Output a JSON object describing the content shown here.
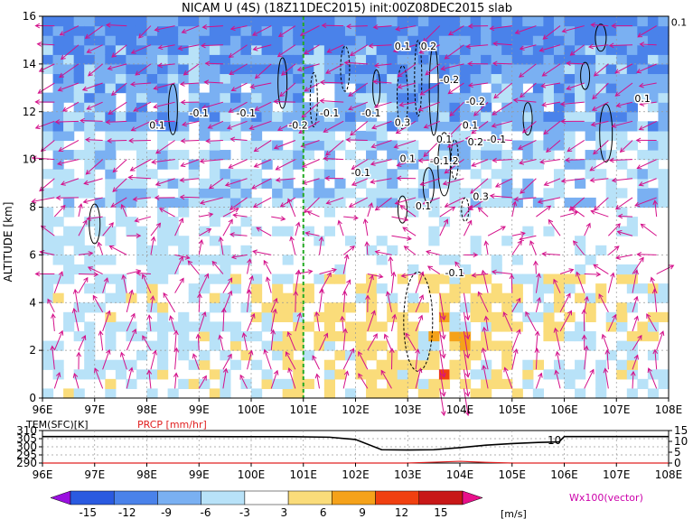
{
  "title": "NICAM U (4S) (18Z11DEC2015) init:00Z08DEC2015 slab",
  "main_panel": {
    "ylabel": "ALTITUDE [km]",
    "yticks": [
      "0",
      "2",
      "4",
      "6",
      "8",
      "10",
      "12",
      "14",
      "16"
    ],
    "xticks": [
      "96E",
      "97E",
      "98E",
      "99E",
      "100E",
      "101E",
      "102E",
      "103E",
      "104E",
      "105E",
      "106E",
      "107E",
      "108E"
    ],
    "contour_labels": [
      "0.1",
      "-0.1",
      "-0.1",
      "-0.2",
      "-0.1",
      "-0.1",
      "0.1",
      "0.2",
      "-0.2",
      "-0.2",
      "0.3",
      "0.1",
      "-0.1.2",
      "0.2",
      "0.1",
      "-0.1",
      "-0.1",
      "0.1",
      "0.3",
      "-0.1",
      "0.1",
      "0.1",
      "0.1"
    ]
  },
  "sub_panel": {
    "left_label": "TEM(SFC)[K]",
    "right_label": "PRCP [mm/hr]",
    "left_ticks": [
      "310",
      "305",
      "300",
      "295",
      "290"
    ],
    "right_ticks": [
      "15",
      "10",
      "5",
      "0"
    ],
    "xticks": [
      "96E",
      "97E",
      "98E",
      "99E",
      "100E",
      "101E",
      "102E",
      "103E",
      "104E",
      "105E",
      "106E",
      "107E",
      "108E"
    ],
    "annotation": "10"
  },
  "colorbar": {
    "ticks": [
      "-15",
      "-12",
      "-9",
      "-6",
      "-3",
      "3",
      "6",
      "9",
      "12",
      "15"
    ],
    "unit": "[m/s]",
    "vector_label": "Wx100(vector)",
    "colors": [
      "#9a10e0",
      "#2a5ae0",
      "#4a82ea",
      "#7ab0f2",
      "#b8e2f8",
      "#ffffff",
      "#fadc7a",
      "#f5a21a",
      "#f04010",
      "#c81818",
      "#e8108a"
    ]
  },
  "chart_data": {
    "type": "heatmap",
    "title": "NICAM U (4S) (18Z11DEC2015) init:00Z08DEC2015 slab",
    "xlabel": "",
    "ylabel": "ALTITUDE [km]",
    "xlim": [
      96,
      108
    ],
    "ylim": [
      0,
      16
    ],
    "x_tick_labels": [
      "96E",
      "97E",
      "98E",
      "99E",
      "100E",
      "101E",
      "102E",
      "103E",
      "104E",
      "105E",
      "106E",
      "107E",
      "108E"
    ],
    "y_tick_labels": [
      "0",
      "2",
      "4",
      "6",
      "8",
      "10",
      "12",
      "14",
      "16"
    ],
    "grid": true,
    "colorbar_levels": [
      -15,
      -12,
      -9,
      -6,
      -3,
      3,
      6,
      9,
      12,
      15
    ],
    "colorbar_unit": "[m/s]",
    "reference_line_x": 101,
    "regions": [
      {
        "category": "< -12",
        "lon": [
          96,
          108
        ],
        "alt": [
          14.5,
          16
        ]
      },
      {
        "category": "-9 to -6",
        "lon": [
          96,
          108
        ],
        "alt": [
          11,
          14.5
        ]
      },
      {
        "category": "-6 to -3",
        "lon": [
          96,
          108
        ],
        "alt": [
          8,
          11
        ]
      },
      {
        "category": "3 to 6",
        "lon": [
          100.5,
          104.5
        ],
        "alt": [
          0,
          5
        ]
      },
      {
        "category": "6 to 9",
        "lon": [
          103.3,
          104.2
        ],
        "alt": [
          1,
          3.8
        ]
      }
    ],
    "lower_panel": {
      "type": "line",
      "series": [
        {
          "name": "TEM(SFC)[K]",
          "x": [
            96,
            97,
            98,
            99,
            100,
            100.8,
            101.5,
            102,
            102.5,
            103,
            103.5,
            104,
            104.5,
            105,
            105.5,
            105.9,
            106,
            107,
            108
          ],
          "values": [
            306.3,
            306.3,
            306.3,
            306.3,
            306.2,
            306.2,
            305.9,
            304.5,
            298.2,
            298.0,
            298.2,
            299.5,
            301.0,
            302.0,
            302.7,
            303.0,
            306.3,
            306.3,
            306.3
          ],
          "ylim": [
            290,
            310
          ]
        },
        {
          "name": "PRCP [mm/hr]",
          "x": [
            96,
            103,
            103.5,
            104,
            104.5,
            105,
            108
          ],
          "values": [
            0,
            0,
            0.4,
            0.8,
            0.3,
            0,
            0
          ],
          "ylim": [
            0,
            15
          ]
        }
      ]
    }
  }
}
